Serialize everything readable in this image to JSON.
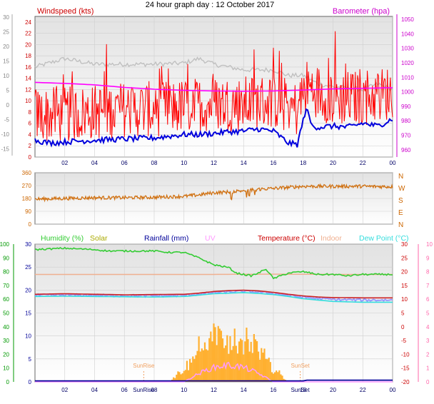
{
  "title": "24 hour graph day : 12 October 2017",
  "panel1": {
    "left_label": "Windspeed (kts)",
    "right_label": "Barometer (hpa)"
  },
  "panel2": {
    "right_ticks": [
      "N",
      "W",
      "S",
      "E",
      "N"
    ]
  },
  "panel3": {
    "labels": [
      "Humidity (%)",
      "Solar",
      "Rainfall (mm)",
      "UV",
      "Temperature (°C)",
      "Indoor",
      "Dew Point (°C)"
    ],
    "annotations": [
      "SunRise",
      "SunSet"
    ]
  },
  "colors": {
    "wind": "#ff0000",
    "gust": "#c0c0c0",
    "windspeed_axis": "#cc0000",
    "barometer": "#ff00ff",
    "wind_avg_line": "#0000dd",
    "direction": "#d07010",
    "humidity": "#33cc33",
    "solar": "#ffb030",
    "rain": "#000099",
    "uv": "#ff99ff",
    "temperature": "#cc2222",
    "indoor": "#f0b090",
    "dewpoint": "#33dddd",
    "app_temp": "#9999ff"
  },
  "chart_data": [
    {
      "type": "line",
      "xlabel": "",
      "x_ticks": [
        "02",
        "04",
        "06",
        "08",
        "10",
        "12",
        "14",
        "16",
        "18",
        "20",
        "22",
        "00"
      ],
      "y_left_ticks": [
        "0",
        "2",
        "4",
        "6",
        "8",
        "10",
        "12",
        "14",
        "16",
        "18",
        "20",
        "22",
        "24"
      ],
      "y_left_lim": [
        0,
        25
      ],
      "y_right_ticks": [
        "960",
        "970",
        "980",
        "990",
        "1000",
        "1010",
        "1020",
        "1030",
        "1040",
        "1050"
      ],
      "y_right_lim": [
        955,
        1052
      ],
      "y_outer_ticks": [
        "30",
        "25",
        "20",
        "15",
        "10",
        "5",
        "0",
        "-5",
        "-10",
        "-15"
      ],
      "series": [
        {
          "name": "Windspeed (kts)",
          "hours": [
            0,
            2,
            4,
            6,
            8,
            10,
            12,
            14,
            16,
            17.6,
            18.2,
            20,
            22,
            24
          ],
          "values": [
            7,
            7,
            7.5,
            8,
            8,
            8.5,
            9,
            9,
            9.5,
            8,
            12,
            10,
            10,
            11
          ]
        },
        {
          "name": "Barometer (hpa)",
          "hours": [
            0,
            2,
            4,
            6,
            8,
            10,
            12,
            14,
            16,
            18,
            20,
            22,
            24
          ],
          "values": [
            1006.5,
            1005.8,
            1004.8,
            1003,
            1001.8,
            1001,
            1000.6,
            1000.4,
            1000.6,
            1001.2,
            1002,
            1002.4,
            1002.8
          ]
        }
      ],
      "avg_wind_hours": [
        0,
        1,
        2,
        4,
        6,
        8,
        10,
        11,
        12,
        13,
        14,
        15,
        16,
        17,
        17.6,
        18.2,
        18.6,
        19,
        20,
        21,
        22,
        23,
        24
      ],
      "avg_wind_values": [
        3,
        2.5,
        2.7,
        3,
        3.2,
        3.4,
        4,
        4,
        4.2,
        4.5,
        4.6,
        5,
        4.6,
        2.5,
        2.2,
        8.7,
        5.5,
        5.3,
        5.5,
        5.3,
        6,
        5.5,
        6.8
      ],
      "gust_hours": [
        0,
        2,
        4,
        6,
        8,
        10,
        11,
        12,
        14,
        16,
        17,
        18,
        19,
        20,
        22,
        23,
        24
      ],
      "gust_values": [
        16,
        17.5,
        16.5,
        16.5,
        16.5,
        16.7,
        17.5,
        16.5,
        15.5,
        15.5,
        14.5,
        14.5,
        13,
        12.5,
        12,
        13,
        12
      ]
    },
    {
      "type": "scatter",
      "ylabel": "",
      "y_left_ticks": [
        "0",
        "90",
        "180",
        "270",
        "360"
      ],
      "y_left_lim": [
        0,
        360
      ],
      "x_ticks": [],
      "series": [
        {
          "name": "",
          "hours": [
            0,
            2,
            4,
            6,
            8,
            10,
            11,
            12,
            13,
            14,
            15,
            16,
            18,
            20,
            22,
            24
          ],
          "values": [
            175,
            180,
            185,
            185,
            188,
            195,
            205,
            220,
            225,
            235,
            245,
            250,
            265,
            265,
            265,
            262
          ]
        }
      ]
    },
    {
      "type": "line",
      "x_ticks": [
        "02",
        "04",
        "06",
        "SunRise",
        "08",
        "10",
        "12",
        "14",
        "16",
        "SunSet",
        "18",
        "20",
        "22",
        "00"
      ],
      "y_far_left_ticks": [
        "0",
        "10",
        "20",
        "30",
        "40",
        "50",
        "60",
        "70",
        "80",
        "90",
        "100"
      ],
      "y_left_ticks": [
        "0",
        "5",
        "10",
        "15",
        "20",
        "25",
        "30"
      ],
      "y_right_ticks": [
        "30",
        "25",
        "20",
        "15",
        "10",
        "5",
        "0",
        "-5",
        "-10",
        "-15",
        "-20"
      ],
      "y_far_right_ticks": [
        "10",
        "9",
        "8",
        "7",
        "6",
        "5",
        "4",
        "3",
        "2",
        "1",
        "0"
      ],
      "series": [
        {
          "name": "Humidity (%)",
          "hours": [
            0,
            2,
            4,
            5,
            6,
            8,
            9,
            10,
            11,
            12,
            12.5,
            13,
            13.5,
            14,
            14.5,
            15,
            15.5,
            16,
            17,
            18,
            19,
            20,
            21,
            22,
            23,
            24
          ],
          "values": [
            96,
            97,
            96,
            95,
            95,
            95,
            94,
            94,
            90,
            85,
            84,
            83,
            79,
            78,
            77,
            79,
            82,
            75,
            79,
            80,
            78,
            78,
            77,
            78,
            78,
            78
          ]
        },
        {
          "name": "Temperature (°C)",
          "hours": [
            0,
            2,
            4,
            6,
            8,
            10,
            11,
            12,
            13,
            14,
            15,
            16,
            17,
            18,
            19,
            20,
            22,
            24
          ],
          "values": [
            11.8,
            12,
            11.8,
            11.6,
            11.7,
            11.8,
            12.2,
            12.8,
            13.1,
            13.3,
            13.0,
            12.5,
            11.8,
            11.2,
            10.8,
            10.6,
            10.5,
            10.5
          ]
        },
        {
          "name": "Dew Point (°C)",
          "hours": [
            0,
            2,
            4,
            6,
            8,
            10,
            11,
            12,
            13,
            14,
            15,
            16,
            17,
            18,
            19,
            20,
            22,
            24
          ],
          "values": [
            11.0,
            11.1,
            11.0,
            10.9,
            10.8,
            11.0,
            11.5,
            12,
            12.2,
            12.4,
            12.1,
            11.7,
            11,
            10.2,
            9.7,
            9.2,
            8.9,
            8.9
          ]
        },
        {
          "name": "Indoor",
          "hours": [
            0,
            2,
            4,
            6,
            8,
            10,
            12,
            14,
            16,
            18,
            20,
            22,
            24
          ],
          "values": [
            25,
            25,
            25,
            25,
            25,
            25,
            25,
            25.1,
            25.2,
            25.1,
            25,
            25,
            25
          ]
        }
      ],
      "annotations": [
        {
          "text": "SunRise",
          "hour": 7.3
        },
        {
          "text": "SunSet",
          "hour": 17.8
        }
      ]
    }
  ]
}
